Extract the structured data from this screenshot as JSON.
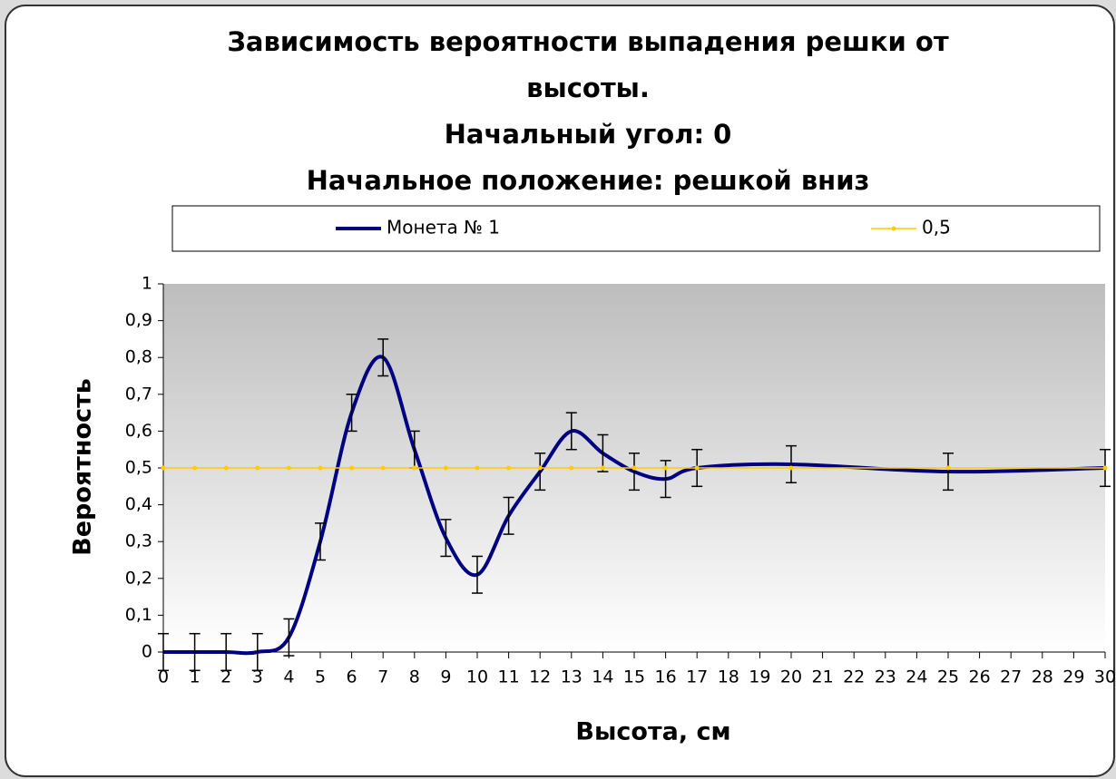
{
  "chart_data": {
    "type": "line",
    "title": [
      "Зависимость вероятности выпадения решки от",
      "высоты.",
      "Начальный угол: 0",
      "Начальное положение: решкой вниз"
    ],
    "x_label": "Высота, см",
    "y_label": "Вероятность",
    "x": [
      0,
      1,
      2,
      3,
      4,
      5,
      6,
      7,
      8,
      9,
      10,
      11,
      12,
      13,
      14,
      15,
      16,
      17,
      20,
      25,
      30
    ],
    "series": [
      {
        "name": "Монета № 1",
        "color": "#000080",
        "smooth": true,
        "values": [
          0,
          0,
          0,
          0,
          0.04,
          0.3,
          0.65,
          0.8,
          0.55,
          0.31,
          0.21,
          0.37,
          0.49,
          0.6,
          0.54,
          0.49,
          0.47,
          0.5,
          0.51,
          0.49,
          0.5
        ],
        "errors": [
          0.05,
          0.05,
          0.05,
          0.05,
          0.05,
          0.05,
          0.05,
          0.05,
          0.05,
          0.05,
          0.05,
          0.05,
          0.05,
          0.05,
          0.05,
          0.05,
          0.05,
          0.05,
          0.05,
          0.05,
          0.05
        ]
      },
      {
        "name": "0,5",
        "color": "#ffcc00",
        "markers": true,
        "values": [
          0.5,
          0.5,
          0.5,
          0.5,
          0.5,
          0.5,
          0.5,
          0.5,
          0.5,
          0.5,
          0.5,
          0.5,
          0.5,
          0.5,
          0.5,
          0.5,
          0.5,
          0.5,
          0.5,
          0.5,
          0.5
        ]
      }
    ],
    "xlim": [
      0,
      30
    ],
    "xticks": [
      0,
      1,
      2,
      3,
      4,
      5,
      6,
      7,
      8,
      9,
      10,
      11,
      12,
      13,
      14,
      15,
      16,
      17,
      18,
      19,
      20,
      21,
      22,
      23,
      24,
      25,
      26,
      27,
      28,
      29,
      30
    ],
    "ylim": [
      0,
      1
    ],
    "yticks": [
      0,
      {
        "value": 0.1,
        "label": "0,1"
      },
      {
        "value": 0.2,
        "label": "0,2"
      },
      {
        "value": 0.3,
        "label": "0,3"
      },
      {
        "value": 0.4,
        "label": "0,4"
      },
      {
        "value": 0.5,
        "label": "0,5"
      },
      {
        "value": 0.6,
        "label": "0,6"
      },
      {
        "value": 0.7,
        "label": "0,7"
      },
      {
        "value": 0.8,
        "label": "0,8"
      },
      {
        "value": 0.9,
        "label": "0,9"
      },
      1
    ]
  }
}
